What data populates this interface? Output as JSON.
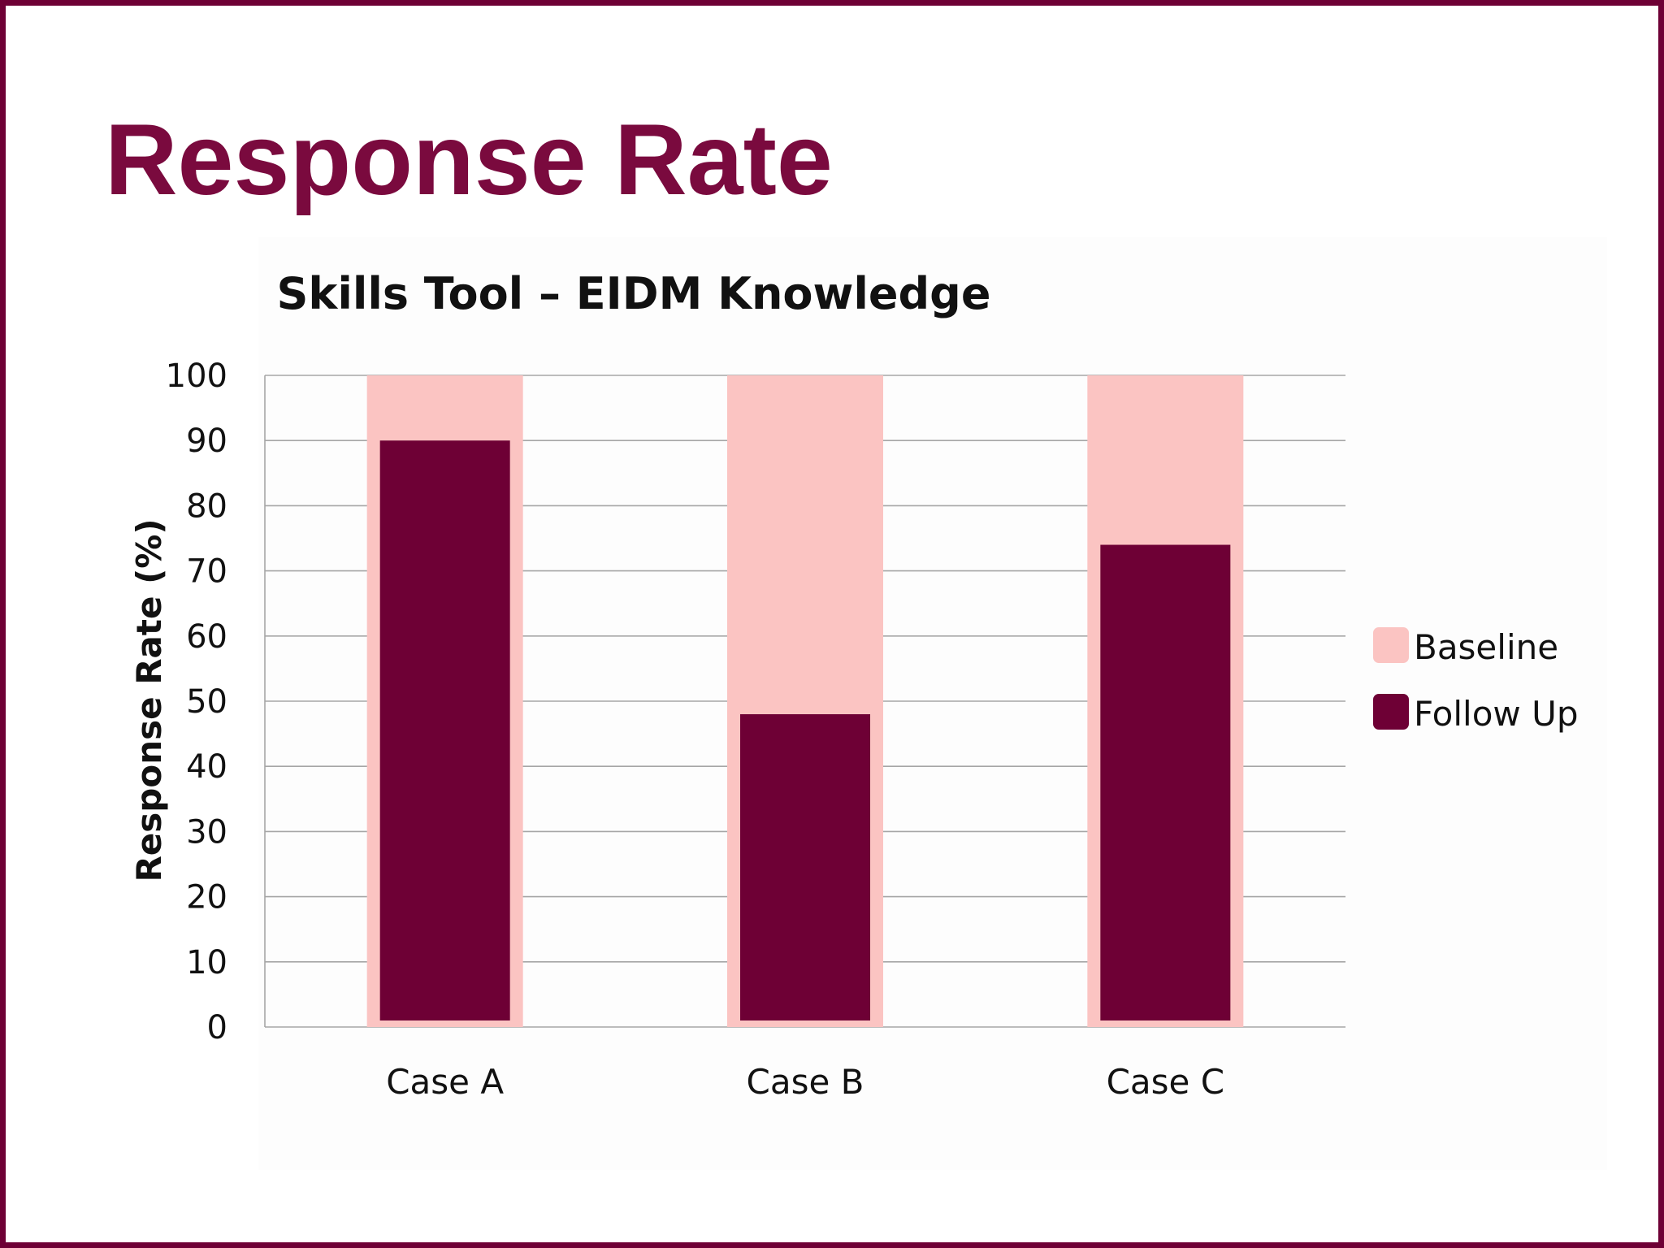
{
  "slide": {
    "title": "Response Rate",
    "border_color": "#6e0035",
    "title_color": "#7a0a3e"
  },
  "chart_data": {
    "type": "bar",
    "title": "Skills Tool – EIDM Knowledge",
    "xlabel": "",
    "ylabel": "Response Rate (%)",
    "ylim": [
      0,
      100
    ],
    "yticks": [
      0,
      10,
      20,
      30,
      40,
      50,
      60,
      70,
      80,
      90,
      100
    ],
    "grid": true,
    "legend": "right",
    "categories": [
      "Case A",
      "Case B",
      "Case C"
    ],
    "series": [
      {
        "name": "Baseline",
        "values": [
          100,
          100,
          100
        ],
        "color": "#fbc4c2"
      },
      {
        "name": "Follow Up",
        "values": [
          90,
          48,
          74
        ],
        "color": "#6e0035"
      }
    ]
  }
}
